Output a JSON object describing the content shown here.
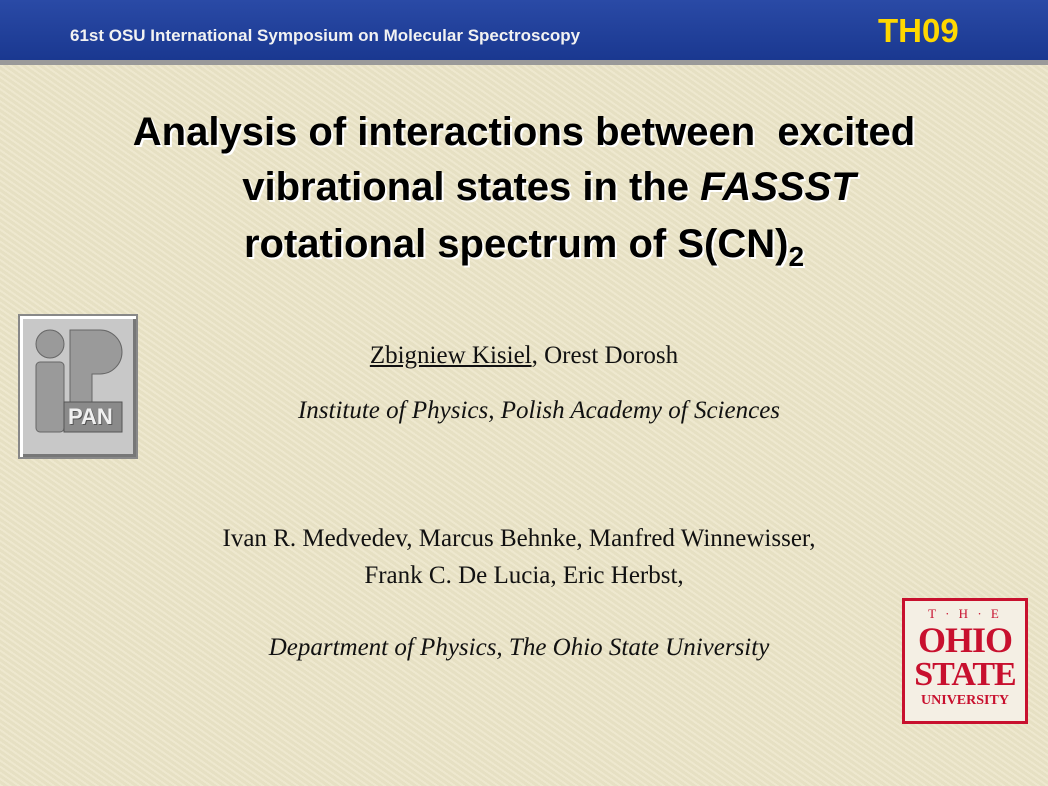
{
  "header": {
    "conference": "61st OSU International Symposium on Molecular Spectroscopy",
    "code": "TH09"
  },
  "title": {
    "line1": "Analysis of interactions between  excited",
    "line2_prefix": "vibrational states in the ",
    "line2_italic": "FASSST",
    "line3_prefix": "rotational spectrum of S(CN)",
    "line3_subscript": "2"
  },
  "authors1": {
    "underlined": "Zbigniew Kisiel",
    "rest": ", Orest Dorosh"
  },
  "affiliation1": "Institute of Physics, Polish Academy of Sciences",
  "authors2": [
    "Ivan R. Medvedev, Marcus Behnke, Manfred Winnewisser,",
    "Frank C. De Lucia, Eric Herbst,"
  ],
  "affiliation2": "Department of Physics, The Ohio State University",
  "logos": {
    "left": "PAN",
    "right": [
      "T · H · E",
      "OHIO",
      "STATE",
      "UNIVERSITY"
    ]
  }
}
